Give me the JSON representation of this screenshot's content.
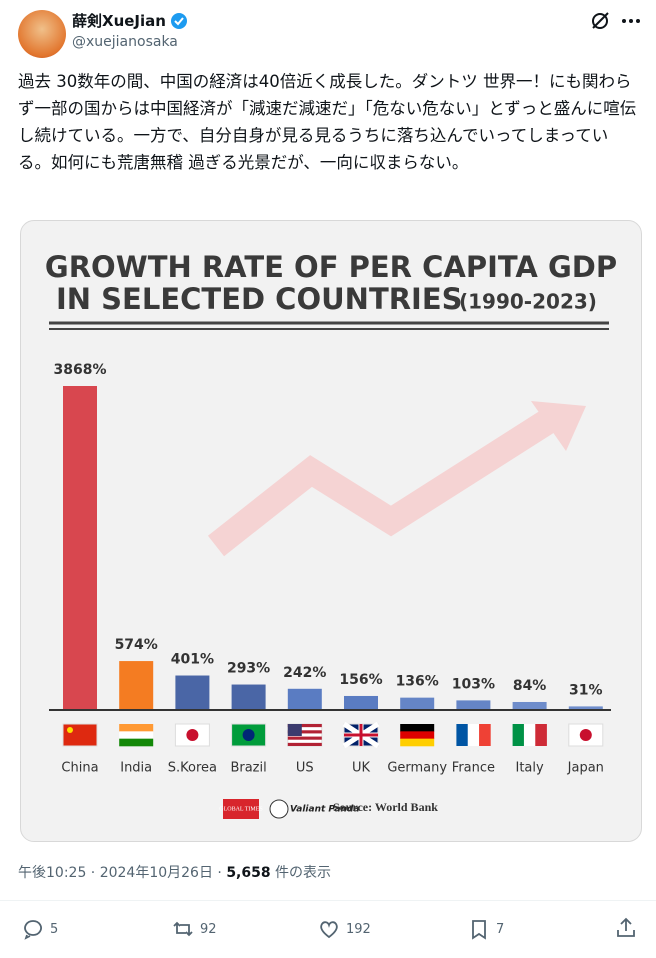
{
  "author": {
    "name": "薛剣XueJian",
    "handle": "@xuejianosaka"
  },
  "text": "過去 30数年の間、中国の経済は40倍近く成長した。ダントツ 世界一！にも関わらず一部の国からは中国経済が「減速だ減速だ」「危ない危ない」とずっと盛んに喧伝し続けている。一方で、自分自身が見る見るうちに落ち込んでいってしまっている。如何にも荒唐無稽 過ぎる光景だが、一向に収まらない。",
  "chart_data": {
    "type": "bar",
    "title": [
      "GROWTH RATE OF PER CAPITA GDP",
      "IN SELECTED COUNTRIES"
    ],
    "subtitle": "(1990-2023)",
    "categories": [
      "China",
      "India",
      "S.Korea",
      "Brazil",
      "US",
      "UK",
      "Germany",
      "France",
      "Italy",
      "Japan"
    ],
    "values": [
      3868,
      574,
      401,
      293,
      242,
      156,
      136,
      103,
      84,
      31
    ],
    "value_labels": [
      "3868%",
      "574%",
      "401%",
      "293%",
      "242%",
      "156%",
      "136%",
      "103%",
      "84%",
      "31%"
    ],
    "colors": [
      "#d8474f",
      "#f47c22",
      "#4a66a6",
      "#4a66a6",
      "#5a7cc2",
      "#5a7cc2",
      "#6585c6",
      "#6585c6",
      "#6f8dcb",
      "#6f8dcb"
    ],
    "logos": [
      "GLOBAL TIMES",
      "Valiant Panda"
    ],
    "source": "Source: World Bank"
  },
  "footer": {
    "time": "午後10:25 · 2024年10月26日 · ",
    "views": "5,658",
    "views_suffix": " 件の表示"
  },
  "actions": {
    "replies": 5,
    "reposts": 92,
    "likes": 192,
    "bookmarks": 7
  }
}
